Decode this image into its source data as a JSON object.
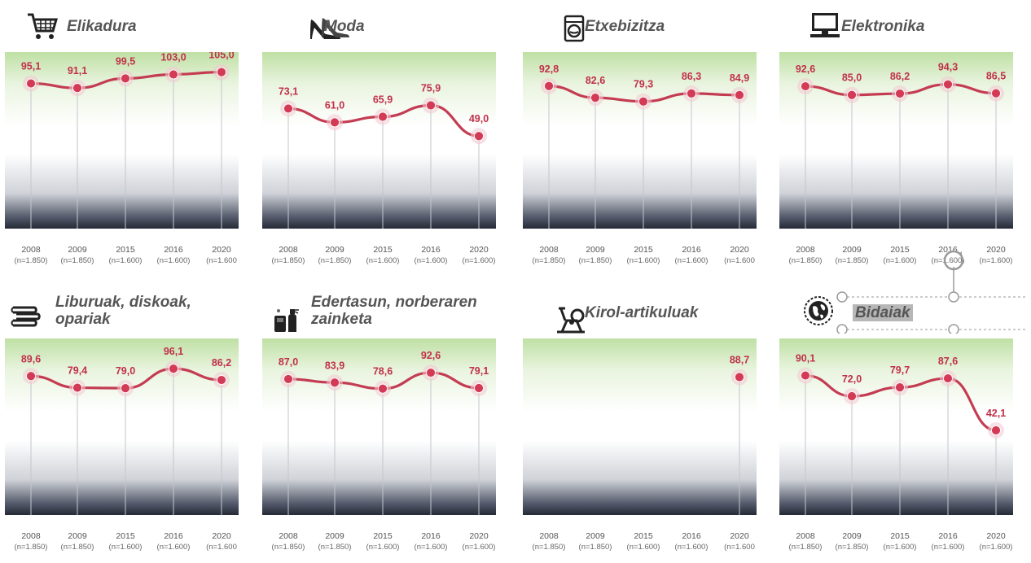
{
  "chart_data": [
    {
      "type": "line",
      "title": "Elikadura",
      "icon": "shopping-cart-icon",
      "categories": [
        "2008",
        "2009",
        "2015",
        "2016",
        "2020"
      ],
      "sample_sizes": [
        "(n=1.850)",
        "(n=1.850)",
        "(n=1.600)",
        "(n=1.600)",
        "(n=1.600"
      ],
      "values": [
        95.1,
        91.1,
        99.5,
        103.0,
        105.0
      ],
      "labels": [
        "95,1",
        "91,1",
        "99,5",
        "103,0",
        "105,0"
      ],
      "ylim": [
        0,
        150
      ]
    },
    {
      "type": "line",
      "title": "Moda",
      "icon": "high-heels-icon",
      "categories": [
        "2008",
        "2009",
        "2015",
        "2016",
        "2020"
      ],
      "sample_sizes": [
        "(n=1.850)",
        "(n=1.850)",
        "(n=1.600)",
        "(n=1.600)",
        "(n=1.600)"
      ],
      "values": [
        73.1,
        61.0,
        65.9,
        75.9,
        49.0
      ],
      "labels": [
        "73,1",
        "61,0",
        "65,9",
        "75,9",
        "49,0"
      ],
      "ylim": [
        0,
        150
      ]
    },
    {
      "type": "line",
      "title": "Etxebizitza",
      "icon": "washing-machine-icon",
      "categories": [
        "2008",
        "2009",
        "2015",
        "2016",
        "2020"
      ],
      "sample_sizes": [
        "(n=1.850)",
        "(n=1.850)",
        "(n=1.600)",
        "(n=1.600)",
        "(n=1.600"
      ],
      "values": [
        92.8,
        82.6,
        79.3,
        86.3,
        84.9
      ],
      "labels": [
        "92,8",
        "82,6",
        "79,3",
        "86,3",
        "84,9"
      ],
      "ylim": [
        0,
        150
      ]
    },
    {
      "type": "line",
      "title": "Elektronika",
      "icon": "computer-icon",
      "categories": [
        "2008",
        "2009",
        "2015",
        "2016",
        "2020"
      ],
      "sample_sizes": [
        "(n=1.850)",
        "(n=1.850)",
        "(n=1.600)",
        "(n=1.600)",
        "(n=1.600)"
      ],
      "values": [
        92.6,
        85.0,
        86.2,
        94.3,
        86.5
      ],
      "labels": [
        "92,6",
        "85,0",
        "86,2",
        "94,3",
        "86,5"
      ],
      "ylim": [
        0,
        150
      ]
    },
    {
      "type": "line",
      "title": "Liburuak, diskoak, opariak",
      "icon": "books-icon",
      "categories": [
        "2008",
        "2009",
        "2015",
        "2016",
        "2020"
      ],
      "sample_sizes": [
        "(n=1.850)",
        "(n=1.850)",
        "(n=1.600)",
        "(n=1.600)",
        "(n=1.600"
      ],
      "values": [
        89.6,
        79.4,
        79.0,
        96.1,
        86.2
      ],
      "labels": [
        "89,6",
        "79,4",
        "79,0",
        "96,1",
        "86,2"
      ],
      "ylim": [
        0,
        150
      ]
    },
    {
      "type": "line",
      "title": "Edertasun, norberaren zainketa",
      "icon": "cosmetics-icon",
      "categories": [
        "2008",
        "2009",
        "2015",
        "2016",
        "2020"
      ],
      "sample_sizes": [
        "(n=1.850)",
        "(n=1.850)",
        "(n=1.600)",
        "(n=1.600)",
        "(n=1.600)"
      ],
      "values": [
        87.0,
        83.9,
        78.6,
        92.6,
        79.1
      ],
      "labels": [
        "87,0",
        "83,9",
        "78,6",
        "92,6",
        "79,1"
      ],
      "ylim": [
        0,
        150
      ]
    },
    {
      "type": "line",
      "title": "Kirol-artikuluak",
      "icon": "exercise-bike-icon",
      "categories": [
        "2008",
        "2009",
        "2015",
        "2016",
        "2020"
      ],
      "sample_sizes": [
        "(n=1.850)",
        "(n=1.850)",
        "(n=1.600)",
        "(n=1.600)",
        "(n=1.600"
      ],
      "values": [
        null,
        null,
        null,
        null,
        88.7
      ],
      "labels": [
        "",
        "",
        "",
        "",
        "88,7"
      ],
      "ylim": [
        0,
        150
      ]
    },
    {
      "type": "line",
      "title": "Bidaiak",
      "icon": "globe-icon",
      "categories": [
        "2008",
        "2009",
        "2015",
        "2016",
        "2020"
      ],
      "sample_sizes": [
        "(n=1.850)",
        "(n=1.850)",
        "(n=1.600)",
        "(n=1.600)",
        "(n=1.600)"
      ],
      "values": [
        90.1,
        72.0,
        79.7,
        87.6,
        42.1
      ],
      "labels": [
        "90,1",
        "72,0",
        "79,7",
        "87,6",
        "42,1"
      ],
      "ylim": [
        0,
        150
      ]
    }
  ],
  "colors": {
    "line": "#c43c52",
    "point": "#d23a55",
    "label": "#c0304a",
    "title": "#555555",
    "selection": "#9a9a9a"
  }
}
